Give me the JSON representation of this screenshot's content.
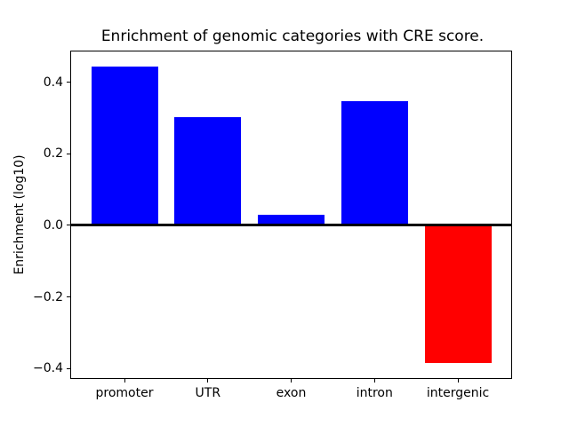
{
  "figure": {
    "background": "#ffffff"
  },
  "chart_data": {
    "type": "bar",
    "title": "Enrichment of genomic categories with CRE score.",
    "xlabel": "",
    "ylabel": "Enrichment (log10)",
    "categories": [
      "promoter",
      "UTR",
      "exon",
      "intron",
      "intergenic"
    ],
    "values": [
      0.445,
      0.303,
      0.03,
      0.348,
      -0.385
    ],
    "bar_colors": {
      "positive": "#0000ff",
      "negative": "#ff0000"
    },
    "ylim": [
      -0.427,
      0.486
    ],
    "xlim": [
      -0.64,
      4.64
    ],
    "yticks": [
      0.4,
      0.2,
      0.0,
      -0.2,
      -0.4
    ],
    "ytick_labels": [
      "0.4",
      "0.2",
      "0.0",
      "−0.2",
      "−0.4"
    ],
    "bar_width_fraction": 0.8,
    "zero_line": true,
    "grid": false,
    "legend": null
  }
}
